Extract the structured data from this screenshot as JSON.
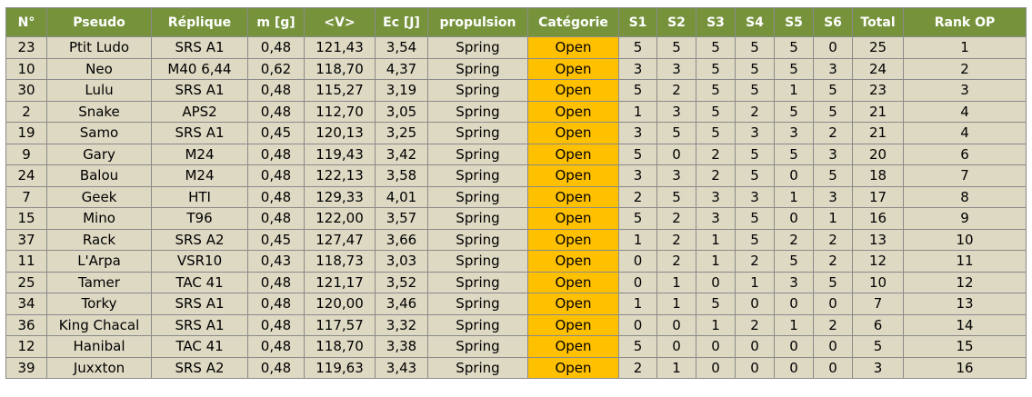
{
  "colors": {
    "header_bg": "#76933c",
    "cell_bg": "#ddd9c3",
    "category_bg": "#ffc000",
    "grid": "#8a8a8a"
  },
  "headers": [
    "N°",
    "Pseudo",
    "Réplique",
    "m [g]",
    "<V>",
    "Ec [J]",
    "propulsion",
    "Catégorie",
    "S1",
    "S2",
    "S3",
    "S4",
    "S5",
    "S6",
    "Total",
    "Rank OP"
  ],
  "rows": [
    [
      "23",
      "Ptit Ludo",
      "SRS A1",
      "0,48",
      "121,43",
      "3,54",
      "Spring",
      "Open",
      "5",
      "5",
      "5",
      "5",
      "5",
      "0",
      "25",
      "1"
    ],
    [
      "10",
      "Neo",
      "M40 6,44",
      "0,62",
      "118,70",
      "4,37",
      "Spring",
      "Open",
      "3",
      "3",
      "5",
      "5",
      "5",
      "3",
      "24",
      "2"
    ],
    [
      "30",
      "Lulu",
      "SRS A1",
      "0,48",
      "115,27",
      "3,19",
      "Spring",
      "Open",
      "5",
      "2",
      "5",
      "5",
      "1",
      "5",
      "23",
      "3"
    ],
    [
      "2",
      "Snake",
      "APS2",
      "0,48",
      "112,70",
      "3,05",
      "Spring",
      "Open",
      "1",
      "3",
      "5",
      "2",
      "5",
      "5",
      "21",
      "4"
    ],
    [
      "19",
      "Samo",
      "SRS A1",
      "0,45",
      "120,13",
      "3,25",
      "Spring",
      "Open",
      "3",
      "5",
      "5",
      "3",
      "3",
      "2",
      "21",
      "4"
    ],
    [
      "9",
      "Gary",
      "M24",
      "0,48",
      "119,43",
      "3,42",
      "Spring",
      "Open",
      "5",
      "0",
      "2",
      "5",
      "5",
      "3",
      "20",
      "6"
    ],
    [
      "24",
      "Balou",
      "M24",
      "0,48",
      "122,13",
      "3,58",
      "Spring",
      "Open",
      "3",
      "3",
      "2",
      "5",
      "0",
      "5",
      "18",
      "7"
    ],
    [
      "7",
      "Geek",
      "HTI",
      "0,48",
      "129,33",
      "4,01",
      "Spring",
      "Open",
      "2",
      "5",
      "3",
      "3",
      "1",
      "3",
      "17",
      "8"
    ],
    [
      "15",
      "Mino",
      "T96",
      "0,48",
      "122,00",
      "3,57",
      "Spring",
      "Open",
      "5",
      "2",
      "3",
      "5",
      "0",
      "1",
      "16",
      "9"
    ],
    [
      "37",
      "Rack",
      "SRS A2",
      "0,45",
      "127,47",
      "3,66",
      "Spring",
      "Open",
      "1",
      "2",
      "1",
      "5",
      "2",
      "2",
      "13",
      "10"
    ],
    [
      "11",
      "L'Arpa",
      "VSR10",
      "0,43",
      "118,73",
      "3,03",
      "Spring",
      "Open",
      "0",
      "2",
      "1",
      "2",
      "5",
      "2",
      "12",
      "11"
    ],
    [
      "25",
      "Tamer",
      "TAC 41",
      "0,48",
      "121,17",
      "3,52",
      "Spring",
      "Open",
      "0",
      "1",
      "0",
      "1",
      "3",
      "5",
      "10",
      "12"
    ],
    [
      "34",
      "Torky",
      "SRS A1",
      "0,48",
      "120,00",
      "3,46",
      "Spring",
      "Open",
      "1",
      "1",
      "5",
      "0",
      "0",
      "0",
      "7",
      "13"
    ],
    [
      "36",
      "King Chacal",
      "SRS A1",
      "0,48",
      "117,57",
      "3,32",
      "Spring",
      "Open",
      "0",
      "0",
      "1",
      "2",
      "1",
      "2",
      "6",
      "14"
    ],
    [
      "12",
      "Hanibal",
      "TAC 41",
      "0,48",
      "118,70",
      "3,38",
      "Spring",
      "Open",
      "5",
      "0",
      "0",
      "0",
      "0",
      "0",
      "5",
      "15"
    ],
    [
      "39",
      "Juxxton",
      "SRS A2",
      "0,48",
      "119,63",
      "3,43",
      "Spring",
      "Open",
      "2",
      "1",
      "0",
      "0",
      "0",
      "0",
      "3",
      "16"
    ]
  ]
}
